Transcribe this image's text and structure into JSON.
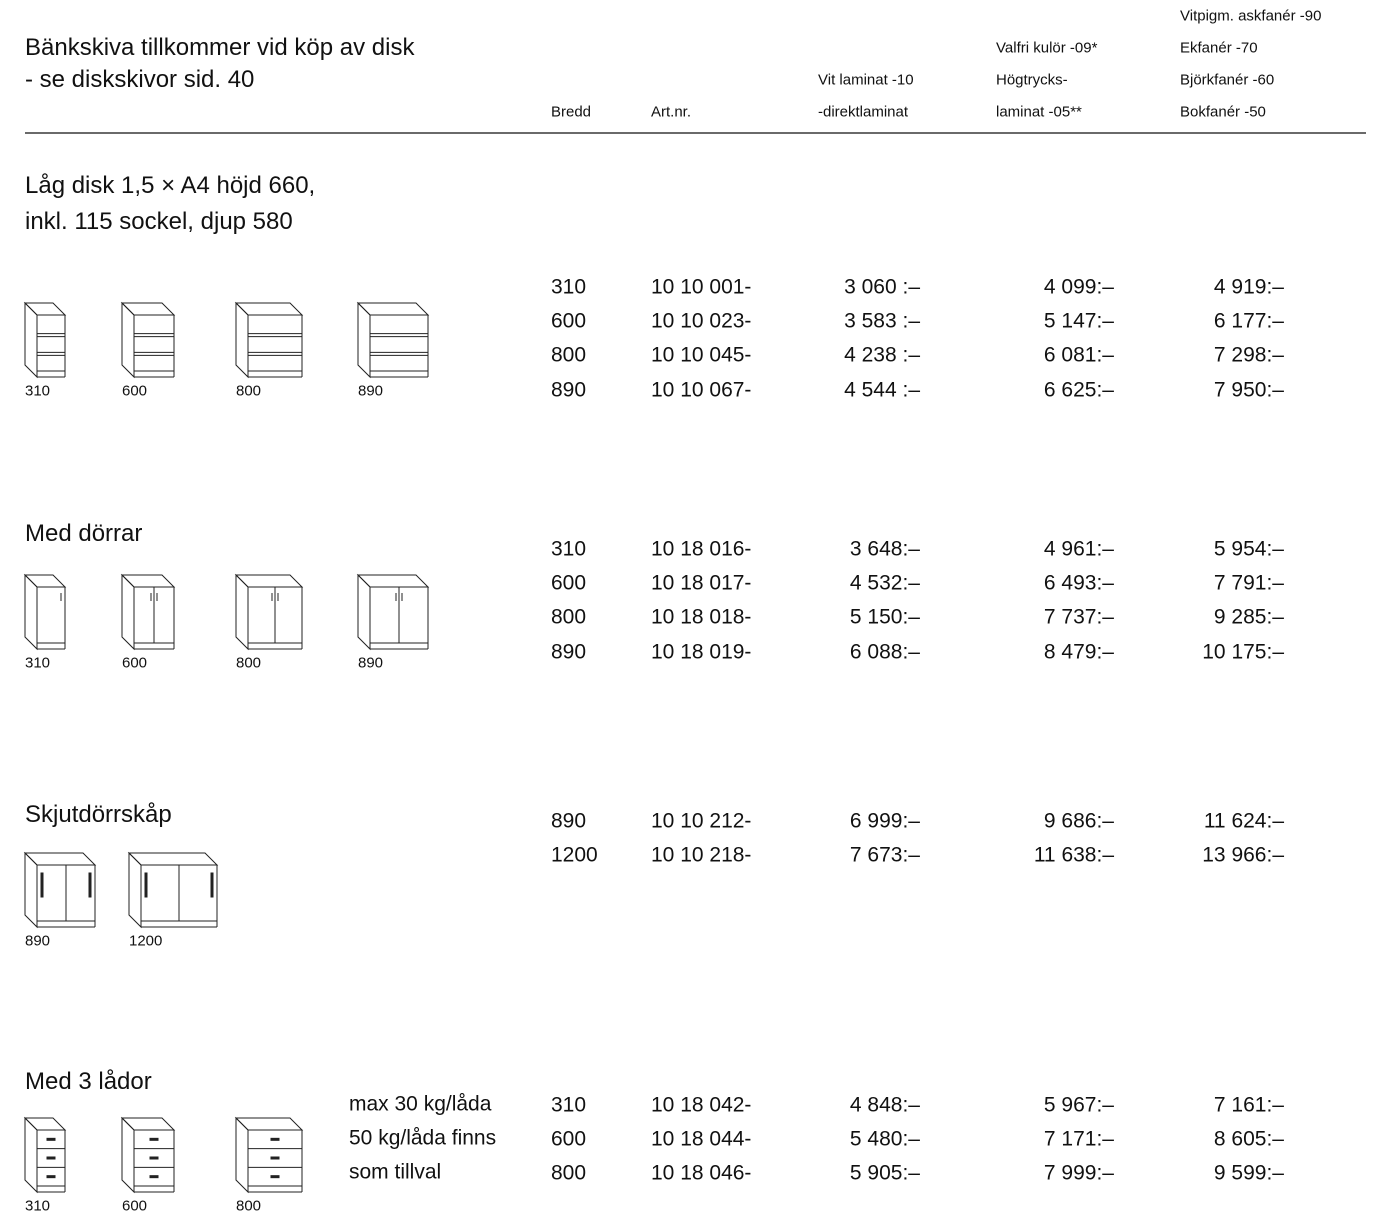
{
  "header": {
    "title": [
      "Bänkskiva tillkommer vid köp av disk",
      "- se diskskivor sid. 40"
    ]
  },
  "columns": {
    "width": "Bredd",
    "article": "Art.nr.",
    "price1": [
      "Vit laminat -10",
      "-direktlaminat"
    ],
    "price2": [
      "Valfri kulör -09*",
      "Högtrycks-",
      "laminat -05**"
    ],
    "price3": [
      "Vitpigm. askfanér -90",
      "Ekfanér -70",
      "Björkfanér -60",
      "Bokfanér -50"
    ]
  },
  "sections": [
    {
      "title": [
        "Låg disk 1,5 × A4 höjd 660,",
        "inkl. 115 sockel, djup 580"
      ],
      "icons": [
        "310",
        "600",
        "800",
        "890"
      ],
      "rows": [
        [
          "310",
          "10 10 001-",
          "3 060 :–",
          "4 099:–",
          "4 919:–"
        ],
        [
          "600",
          "10 10 023-",
          "3 583 :–",
          "5 147:–",
          "6 177:–"
        ],
        [
          "800",
          "10 10 045-",
          "4 238 :–",
          "6 081:–",
          "7 298:–"
        ],
        [
          "890",
          "10 10 067-",
          "4 544 :–",
          "6 625:–",
          "7 950:–"
        ]
      ]
    },
    {
      "title": [
        "Med dörrar"
      ],
      "icons": [
        "310",
        "600",
        "800",
        "890"
      ],
      "rows": [
        [
          "310",
          "10 18 016-",
          "3 648:–",
          "4 961:–",
          "5 954:–"
        ],
        [
          "600",
          "10 18 017-",
          "4 532:–",
          "6 493:–",
          "7 791:–"
        ],
        [
          "800",
          "10 18 018-",
          "5 150:–",
          "7 737:–",
          "9 285:–"
        ],
        [
          "890",
          "10 18 019-",
          "6 088:–",
          "8 479:–",
          "10 175:–"
        ]
      ]
    },
    {
      "title": [
        "Skjutdörrskåp"
      ],
      "icons": [
        "890",
        "1200"
      ],
      "rows": [
        [
          "890",
          "10 10 212-",
          "6 999:–",
          "9 686:–",
          "11 624:–"
        ],
        [
          "1200",
          "10 10 218-",
          "7 673:–",
          "11 638:–",
          "13 966:–"
        ]
      ]
    },
    {
      "title": [
        "Med 3 lådor"
      ],
      "icons": [
        "310",
        "600",
        "800"
      ],
      "note": [
        "max 30 kg/låda",
        "50 kg/låda finns",
        "som tillval"
      ],
      "rows": [
        [
          "310",
          "10 18 042-",
          "4 848:–",
          "5 967:–",
          "7 161:–"
        ],
        [
          "600",
          "10 18 044-",
          "5 480:–",
          "7 171:–",
          "8 605:–"
        ],
        [
          "800",
          "10 18 046-",
          "5 905:–",
          "7 999:–",
          "9 599:–"
        ]
      ]
    }
  ]
}
